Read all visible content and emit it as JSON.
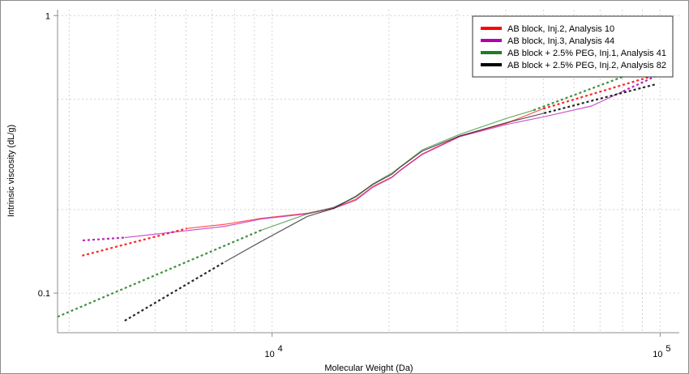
{
  "chart_data": {
    "type": "line",
    "xlabel": "Molecular Weight (Da)",
    "ylabel": "Intrinsic viscosity (dL/g)",
    "xscale": "log",
    "yscale": "log",
    "xlim": [
      2800,
      112000
    ],
    "ylim": [
      0.072,
      1.05
    ],
    "grid": true,
    "legend_position": "top-right",
    "x_ticks": [
      {
        "value": 10000,
        "base": "10",
        "exp": "4"
      },
      {
        "value": 100000,
        "base": "10",
        "exp": "5"
      }
    ],
    "y_ticks": [
      {
        "value": 1,
        "label": "1"
      },
      {
        "value": 0.1,
        "label": "0.1"
      }
    ],
    "series": [
      {
        "name": "AB block, Inj.2, Analysis 10",
        "color": "#ff0000",
        "solid": {
          "x": [
            6030,
            7550,
            9370,
            12330,
            14420,
            16450,
            18140,
            20360,
            21360,
            24370,
            30410,
            40120,
            49990
          ],
          "y": [
            0.171,
            0.177,
            0.186,
            0.194,
            0.203,
            0.218,
            0.242,
            0.262,
            0.277,
            0.317,
            0.368,
            0.409,
            0.462
          ]
        },
        "extrap": [
          {
            "x": [
              3240,
              6030
            ],
            "y": [
              0.1365,
              0.171
            ]
          },
          {
            "x": [
              49990,
              101200
            ],
            "y": [
              0.462,
              0.62
            ]
          }
        ]
      },
      {
        "name": "AB block, Inj.3, Analysis 44",
        "color": "#b000b0",
        "solid": {
          "x": [
            4170,
            7550,
            9370,
            12330,
            14420,
            16450,
            18140,
            20360,
            21360,
            24370,
            30410,
            40120,
            50210,
            66500,
            80300
          ],
          "y": [
            0.1585,
            0.174,
            0.185,
            0.193,
            0.202,
            0.216,
            0.24,
            0.261,
            0.276,
            0.316,
            0.366,
            0.405,
            0.432,
            0.472,
            0.534
          ]
        },
        "extrap": [
          {
            "x": [
              3250,
              4170
            ],
            "y": [
              0.1548,
              0.1585
            ]
          },
          {
            "x": [
              80300,
              101200
            ],
            "y": [
              0.534,
              0.62
            ]
          }
        ]
      },
      {
        "name": "AB block + 2.5% PEG, Inj.1, Analysis 41",
        "color": "#1e7d1e",
        "solid": {
          "x": [
            9370,
            12330,
            14420,
            16450,
            18140,
            20360,
            21360,
            24370,
            30410,
            40120,
            47160
          ],
          "y": [
            0.1685,
            0.193,
            0.204,
            0.222,
            0.247,
            0.271,
            0.285,
            0.328,
            0.373,
            0.426,
            0.456
          ]
        },
        "extrap": [
          {
            "x": [
              2800,
              9370
            ],
            "y": [
              0.0822,
              0.1685
            ]
          },
          {
            "x": [
              47160,
              91400
            ],
            "y": [
              0.456,
              0.645
            ]
          }
        ]
      },
      {
        "name": "AB block + 2.5% PEG, Inj.2, Analysis 82",
        "color": "#000000",
        "solid": {
          "x": [
            7550,
            9370,
            12330,
            14420,
            16450,
            18140,
            20360,
            21360,
            24370,
            30410,
            40120,
            50210
          ],
          "y": [
            0.1295,
            0.1535,
            0.189,
            0.202,
            0.2235,
            0.246,
            0.268,
            0.284,
            0.325,
            0.368,
            0.411,
            0.445
          ]
        },
        "extrap": [
          {
            "x": [
              4170,
              7550
            ],
            "y": [
              0.0795,
              0.1295
            ]
          },
          {
            "x": [
              50210,
              97500
            ],
            "y": [
              0.445,
              0.566
            ]
          }
        ]
      }
    ]
  }
}
